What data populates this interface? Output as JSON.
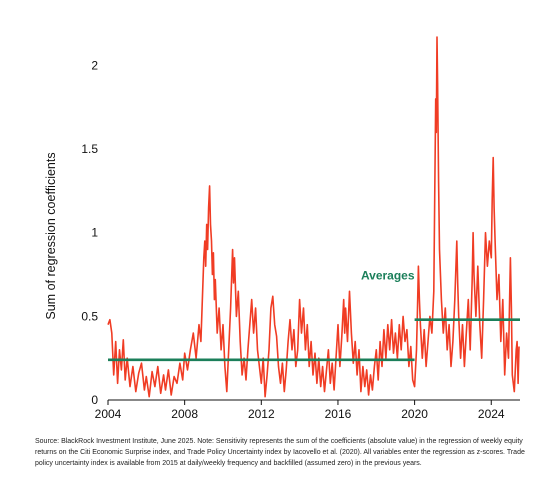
{
  "chart_data": {
    "type": "line",
    "title": "",
    "xlabel": "",
    "ylabel": "Sum of regression coefficients",
    "xlim": [
      2004,
      2025.5
    ],
    "ylim": [
      0,
      2.2
    ],
    "x_ticks": [
      "2004",
      "2008",
      "2012",
      "2016",
      "2020",
      "2024"
    ],
    "y_ticks": [
      "0",
      "0.5",
      "1",
      "1.5",
      "2"
    ],
    "grid": false,
    "colors": {
      "series": "#f03c24",
      "averages": "#1b7f5a"
    },
    "series": [
      {
        "values": [
          [
            2004.0,
            0.45
          ],
          [
            2004.1,
            0.48
          ],
          [
            2004.2,
            0.4
          ],
          [
            2004.3,
            0.15
          ],
          [
            2004.4,
            0.35
          ],
          [
            2004.5,
            0.1
          ],
          [
            2004.6,
            0.3
          ],
          [
            2004.7,
            0.18
          ],
          [
            2004.8,
            0.36
          ],
          [
            2004.9,
            0.12
          ],
          [
            2005.0,
            0.25
          ],
          [
            2005.15,
            0.08
          ],
          [
            2005.3,
            0.2
          ],
          [
            2005.45,
            0.05
          ],
          [
            2005.6,
            0.16
          ],
          [
            2005.75,
            0.22
          ],
          [
            2005.9,
            0.06
          ],
          [
            2006.0,
            0.14
          ],
          [
            2006.15,
            0.02
          ],
          [
            2006.3,
            0.17
          ],
          [
            2006.45,
            0.08
          ],
          [
            2006.6,
            0.2
          ],
          [
            2006.75,
            0.04
          ],
          [
            2006.9,
            0.15
          ],
          [
            2007.0,
            0.06
          ],
          [
            2007.15,
            0.18
          ],
          [
            2007.3,
            0.03
          ],
          [
            2007.45,
            0.14
          ],
          [
            2007.6,
            0.1
          ],
          [
            2007.75,
            0.22
          ],
          [
            2007.9,
            0.12
          ],
          [
            2008.0,
            0.28
          ],
          [
            2008.15,
            0.18
          ],
          [
            2008.3,
            0.3
          ],
          [
            2008.45,
            0.4
          ],
          [
            2008.6,
            0.25
          ],
          [
            2008.75,
            0.45
          ],
          [
            2008.85,
            0.35
          ],
          [
            2009.0,
            0.85
          ],
          [
            2009.05,
            0.95
          ],
          [
            2009.1,
            0.8
          ],
          [
            2009.15,
            1.05
          ],
          [
            2009.2,
            0.9
          ],
          [
            2009.25,
            1.15
          ],
          [
            2009.3,
            1.28
          ],
          [
            2009.35,
            1.05
          ],
          [
            2009.4,
            0.95
          ],
          [
            2009.45,
            0.75
          ],
          [
            2009.5,
            0.88
          ],
          [
            2009.55,
            0.6
          ],
          [
            2009.6,
            0.72
          ],
          [
            2009.7,
            0.4
          ],
          [
            2009.8,
            0.55
          ],
          [
            2009.9,
            0.3
          ],
          [
            2010.0,
            0.45
          ],
          [
            2010.1,
            0.2
          ],
          [
            2010.2,
            0.05
          ],
          [
            2010.3,
            0.3
          ],
          [
            2010.4,
            0.55
          ],
          [
            2010.5,
            0.9
          ],
          [
            2010.55,
            0.7
          ],
          [
            2010.6,
            0.85
          ],
          [
            2010.7,
            0.5
          ],
          [
            2010.8,
            0.65
          ],
          [
            2010.9,
            0.35
          ],
          [
            2011.0,
            0.15
          ],
          [
            2011.1,
            0.25
          ],
          [
            2011.2,
            0.12
          ],
          [
            2011.3,
            0.3
          ],
          [
            2011.4,
            0.45
          ],
          [
            2011.5,
            0.6
          ],
          [
            2011.6,
            0.4
          ],
          [
            2011.7,
            0.55
          ],
          [
            2011.8,
            0.3
          ],
          [
            2011.9,
            0.2
          ],
          [
            2012.0,
            0.1
          ],
          [
            2012.1,
            0.25
          ],
          [
            2012.2,
            0.02
          ],
          [
            2012.3,
            0.15
          ],
          [
            2012.4,
            0.3
          ],
          [
            2012.5,
            0.55
          ],
          [
            2012.6,
            0.62
          ],
          [
            2012.7,
            0.45
          ],
          [
            2012.8,
            0.38
          ],
          [
            2012.9,
            0.2
          ],
          [
            2013.0,
            0.1
          ],
          [
            2013.1,
            0.22
          ],
          [
            2013.2,
            0.05
          ],
          [
            2013.3,
            0.18
          ],
          [
            2013.4,
            0.35
          ],
          [
            2013.5,
            0.48
          ],
          [
            2013.6,
            0.3
          ],
          [
            2013.7,
            0.42
          ],
          [
            2013.8,
            0.2
          ],
          [
            2013.9,
            0.3
          ],
          [
            2014.0,
            0.6
          ],
          [
            2014.1,
            0.4
          ],
          [
            2014.2,
            0.55
          ],
          [
            2014.3,
            0.3
          ],
          [
            2014.4,
            0.45
          ],
          [
            2014.5,
            0.2
          ],
          [
            2014.6,
            0.35
          ],
          [
            2014.7,
            0.15
          ],
          [
            2014.8,
            0.28
          ],
          [
            2014.9,
            0.1
          ],
          [
            2015.0,
            0.25
          ],
          [
            2015.1,
            0.08
          ],
          [
            2015.2,
            0.2
          ],
          [
            2015.3,
            0.05
          ],
          [
            2015.4,
            0.18
          ],
          [
            2015.5,
            0.3
          ],
          [
            2015.6,
            0.1
          ],
          [
            2015.7,
            0.22
          ],
          [
            2015.8,
            0.06
          ],
          [
            2015.9,
            0.25
          ],
          [
            2016.0,
            0.45
          ],
          [
            2016.1,
            0.2
          ],
          [
            2016.2,
            0.38
          ],
          [
            2016.3,
            0.6
          ],
          [
            2016.35,
            0.4
          ],
          [
            2016.4,
            0.55
          ],
          [
            2016.5,
            0.35
          ],
          [
            2016.6,
            0.65
          ],
          [
            2016.7,
            0.4
          ],
          [
            2016.8,
            0.22
          ],
          [
            2016.9,
            0.35
          ],
          [
            2017.0,
            0.15
          ],
          [
            2017.1,
            0.3
          ],
          [
            2017.2,
            0.05
          ],
          [
            2017.3,
            0.2
          ],
          [
            2017.4,
            0.08
          ],
          [
            2017.5,
            0.18
          ],
          [
            2017.6,
            0.03
          ],
          [
            2017.7,
            0.15
          ],
          [
            2017.8,
            0.06
          ],
          [
            2017.9,
            0.2
          ],
          [
            2018.0,
            0.3
          ],
          [
            2018.1,
            0.12
          ],
          [
            2018.2,
            0.35
          ],
          [
            2018.3,
            0.2
          ],
          [
            2018.4,
            0.42
          ],
          [
            2018.5,
            0.25
          ],
          [
            2018.6,
            0.45
          ],
          [
            2018.7,
            0.3
          ],
          [
            2018.8,
            0.48
          ],
          [
            2018.9,
            0.28
          ],
          [
            2019.0,
            0.4
          ],
          [
            2019.1,
            0.25
          ],
          [
            2019.2,
            0.45
          ],
          [
            2019.3,
            0.3
          ],
          [
            2019.4,
            0.5
          ],
          [
            2019.5,
            0.35
          ],
          [
            2019.6,
            0.42
          ],
          [
            2019.7,
            0.2
          ],
          [
            2019.8,
            0.32
          ],
          [
            2019.9,
            0.12
          ],
          [
            2020.0,
            0.08
          ],
          [
            2020.1,
            0.3
          ],
          [
            2020.15,
            0.55
          ],
          [
            2020.2,
            0.8
          ],
          [
            2020.25,
            0.6
          ],
          [
            2020.3,
            0.45
          ],
          [
            2020.4,
            0.25
          ],
          [
            2020.5,
            0.42
          ],
          [
            2020.6,
            0.2
          ],
          [
            2020.7,
            0.35
          ],
          [
            2020.8,
            0.5
          ],
          [
            2020.9,
            0.4
          ],
          [
            2021.0,
            0.65
          ],
          [
            2021.05,
            1.2
          ],
          [
            2021.1,
            1.8
          ],
          [
            2021.13,
            1.6
          ],
          [
            2021.17,
            2.17
          ],
          [
            2021.2,
            1.9
          ],
          [
            2021.25,
            1.3
          ],
          [
            2021.3,
            0.9
          ],
          [
            2021.4,
            0.6
          ],
          [
            2021.5,
            0.4
          ],
          [
            2021.6,
            0.55
          ],
          [
            2021.7,
            0.3
          ],
          [
            2021.8,
            0.45
          ],
          [
            2021.9,
            0.2
          ],
          [
            2022.0,
            0.35
          ],
          [
            2022.1,
            0.6
          ],
          [
            2022.2,
            0.95
          ],
          [
            2022.25,
            0.7
          ],
          [
            2022.3,
            0.5
          ],
          [
            2022.4,
            0.25
          ],
          [
            2022.5,
            0.45
          ],
          [
            2022.6,
            0.2
          ],
          [
            2022.7,
            0.4
          ],
          [
            2022.8,
            0.6
          ],
          [
            2022.9,
            0.3
          ],
          [
            2023.0,
            0.7
          ],
          [
            2023.05,
            1.0
          ],
          [
            2023.1,
            0.75
          ],
          [
            2023.2,
            0.5
          ],
          [
            2023.3,
            0.8
          ],
          [
            2023.4,
            0.45
          ],
          [
            2023.5,
            0.25
          ],
          [
            2023.6,
            0.6
          ],
          [
            2023.7,
            1.0
          ],
          [
            2023.8,
            0.8
          ],
          [
            2023.9,
            0.95
          ],
          [
            2024.0,
            0.85
          ],
          [
            2024.05,
            1.2
          ],
          [
            2024.1,
            1.45
          ],
          [
            2024.15,
            1.15
          ],
          [
            2024.2,
            0.95
          ],
          [
            2024.3,
            0.6
          ],
          [
            2024.4,
            0.75
          ],
          [
            2024.5,
            0.35
          ],
          [
            2024.6,
            0.6
          ],
          [
            2024.7,
            0.15
          ],
          [
            2024.8,
            0.4
          ],
          [
            2024.9,
            0.25
          ],
          [
            2025.0,
            0.85
          ],
          [
            2025.05,
            0.55
          ],
          [
            2025.1,
            0.15
          ],
          [
            2025.2,
            0.05
          ],
          [
            2025.3,
            0.3
          ],
          [
            2025.35,
            0.35
          ],
          [
            2025.4,
            0.1
          ],
          [
            2025.45,
            0.32
          ]
        ]
      }
    ],
    "averages": {
      "label": "Averages",
      "segments": [
        {
          "x": [
            2004,
            2020
          ],
          "y": 0.24
        },
        {
          "x": [
            2020,
            2025.5
          ],
          "y": 0.48
        }
      ]
    },
    "source_note": "Source: BlackRock Investment Institute, June 2025. Note: Sensitivity represents the sum of the coefficients (absolute value) in the regression of weekly equity returns on the Citi Economic Surprise index, and Trade Policy Uncertainty index by Iacovello et al. (2020). All variables enter the regression as z-scores. Trade policy uncertainty index is available from 2015 at daily/weekly frequency and backfilled (assumed zero) in the previous years."
  }
}
